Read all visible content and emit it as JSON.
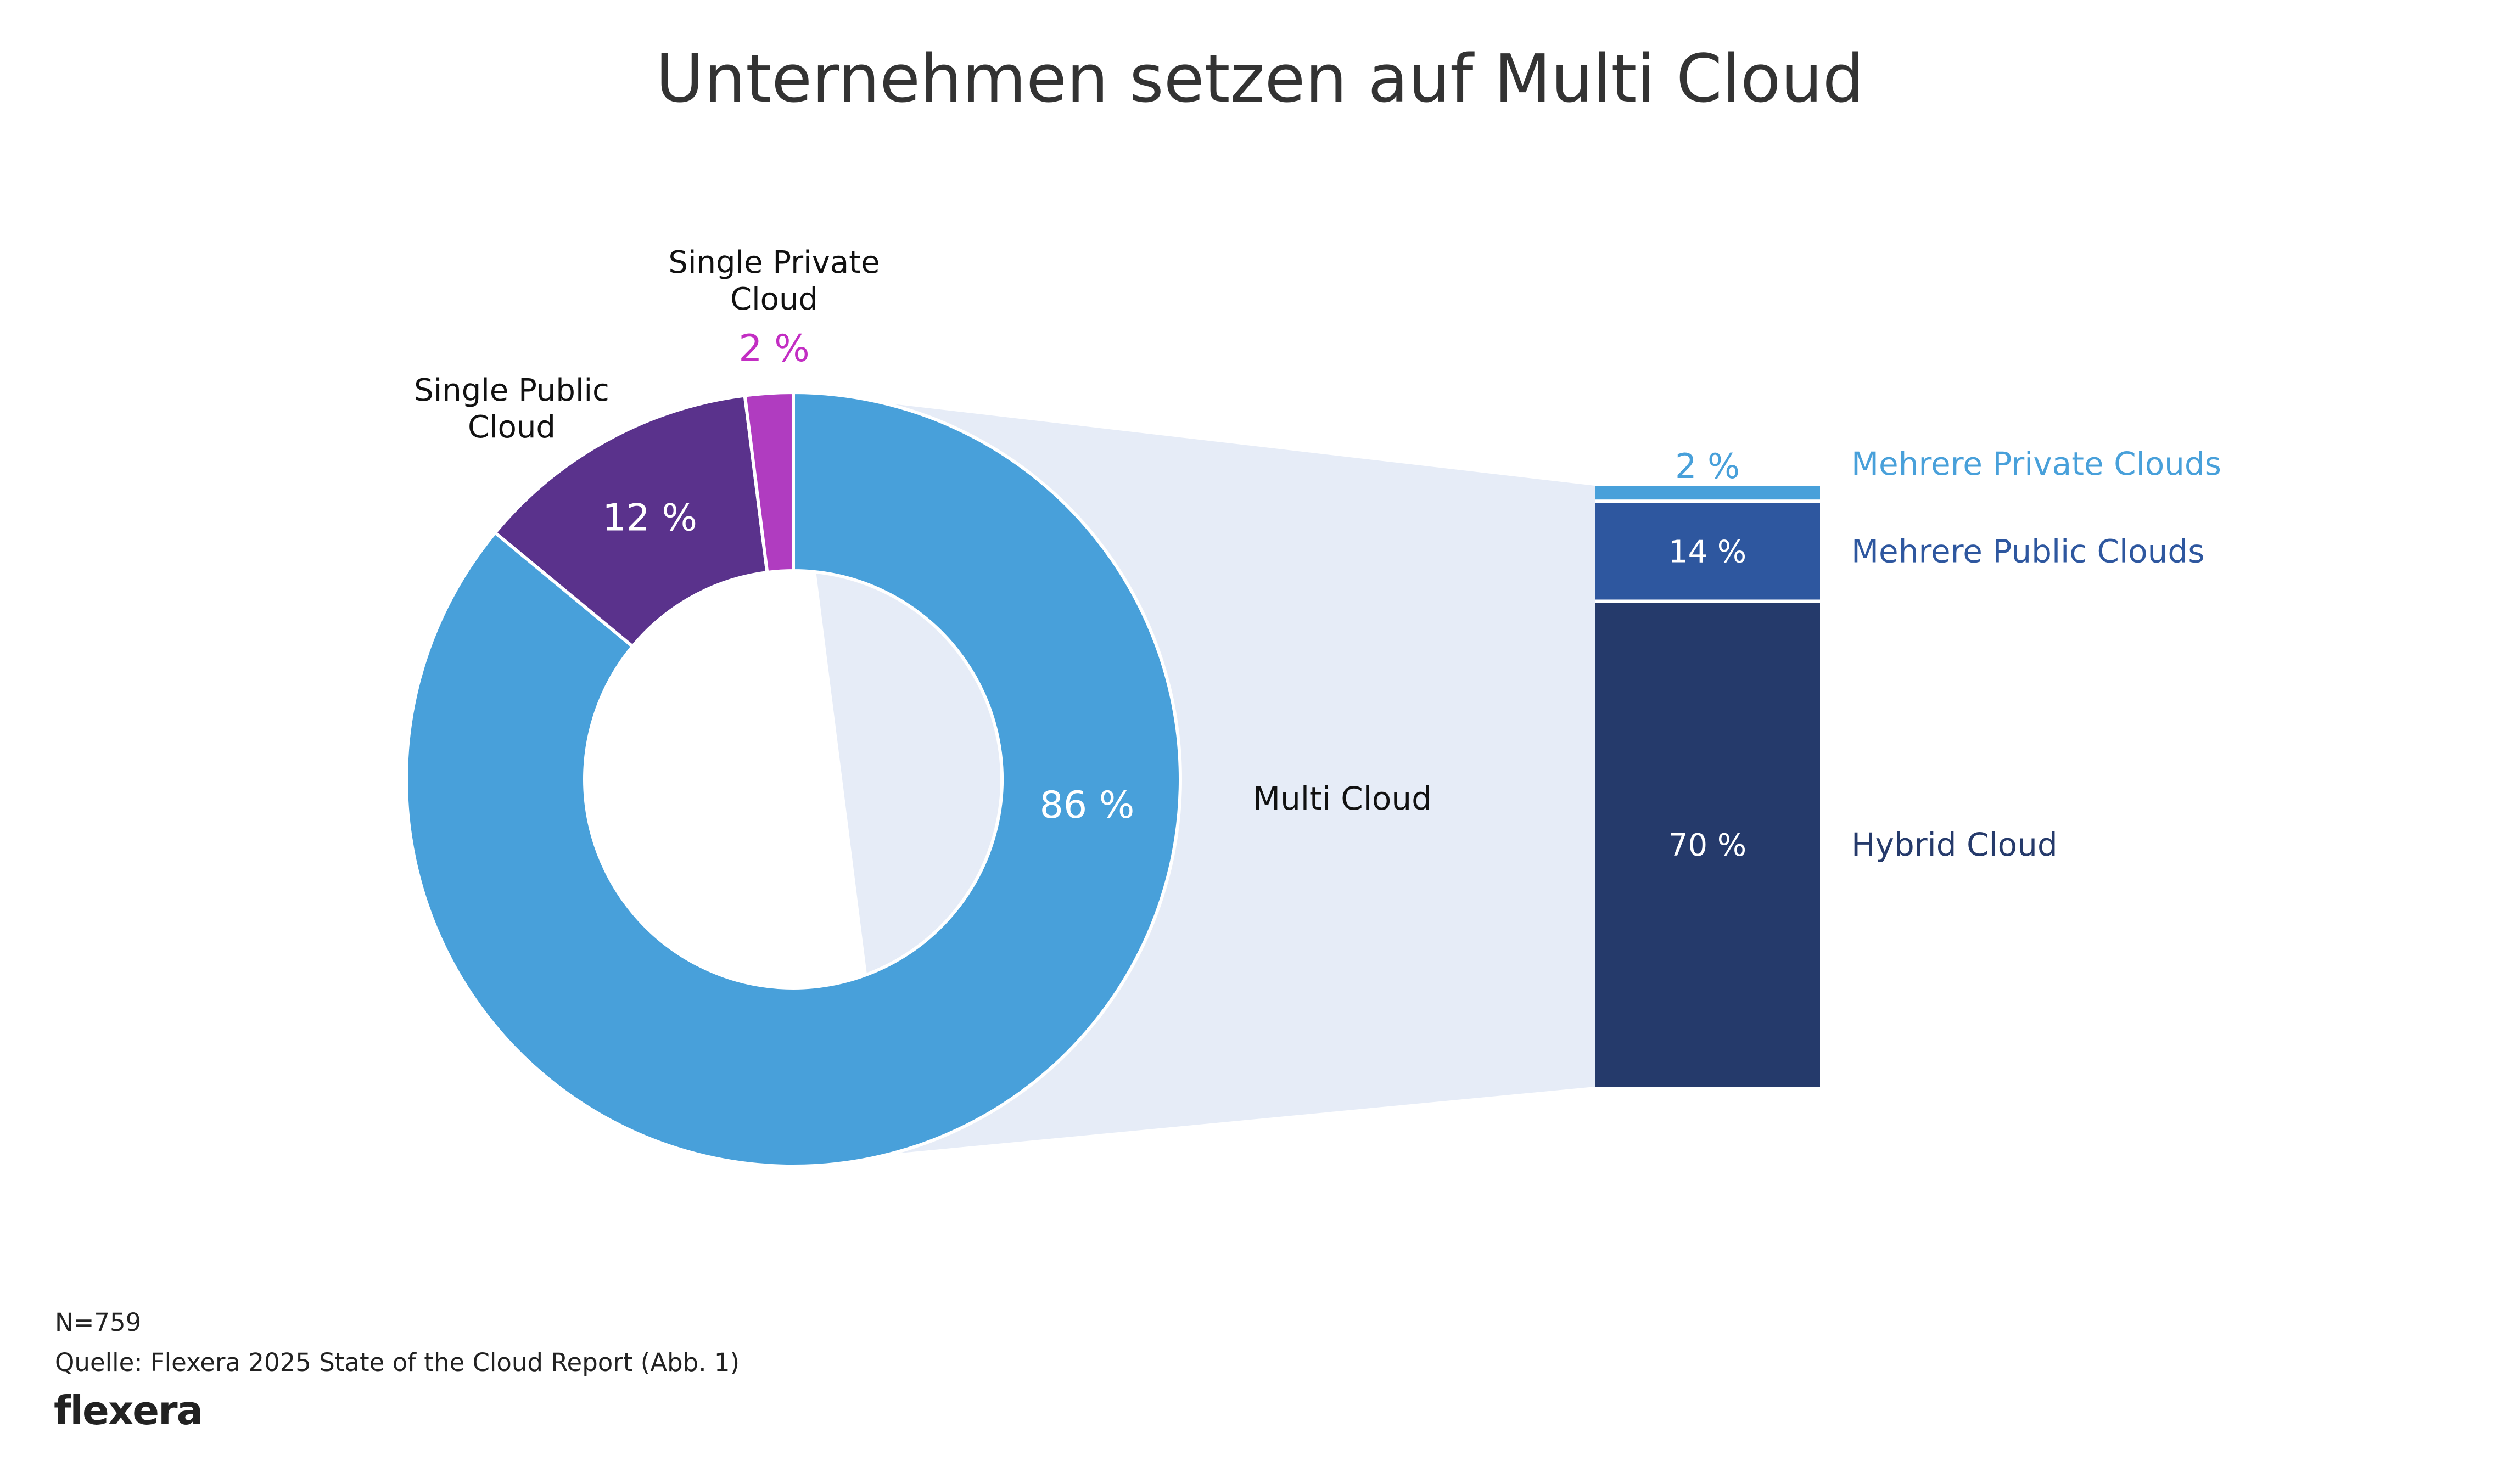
{
  "chart_data": {
    "type": "pie",
    "title": "Unternehmen setzen auf Multi Cloud",
    "main": {
      "slices": [
        {
          "name": "Multi Cloud",
          "label": "Multi Cloud",
          "value": 86,
          "value_label": "86 %",
          "color": "#48a0da"
        },
        {
          "name": "Single Public Cloud",
          "label_lines": [
            "Single Public",
            "Cloud"
          ],
          "value": 12,
          "value_label": "12 %",
          "color": "#5a328c"
        },
        {
          "name": "Single Private Cloud",
          "label_lines": [
            "Single Private",
            "Cloud"
          ],
          "value": 2,
          "value_label": "2 %",
          "color": "#b03cc0",
          "value_label_color": "#c32ec3"
        }
      ]
    },
    "breakdown": {
      "of": "Multi Cloud",
      "segments": [
        {
          "name": "Mehrere Private Clouds",
          "value": 2,
          "value_label": "2 %",
          "color": "#48a0da"
        },
        {
          "name": "Mehrere Public Clouds",
          "value": 14,
          "value_label": "14 %",
          "color": "#2e579f"
        },
        {
          "name": "Hybrid Cloud",
          "value": 70,
          "value_label": "70 %",
          "color": "#253a6b"
        }
      ]
    },
    "connector_color": "#e6ecf7"
  },
  "footer": {
    "sample": "N=759",
    "source": "Quelle: Flexera 2025 State of the Cloud Report (Abb. 1)",
    "logo_text": "flexera"
  }
}
